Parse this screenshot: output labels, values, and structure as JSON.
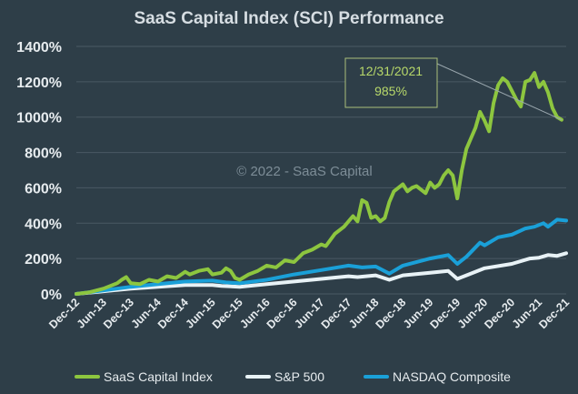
{
  "chart_data": {
    "type": "line",
    "title": "SaaS Capital Index (SCI) Performance",
    "xlabel": "",
    "ylabel": "",
    "ylim": [
      0,
      1400
    ],
    "y_unit": "%",
    "yticks": [
      "0%",
      "200%",
      "400%",
      "600%",
      "800%",
      "1000%",
      "1200%",
      "1400%"
    ],
    "x_tick_labels": [
      "Dec-12",
      "Jun-13",
      "Dec-13",
      "Jun-14",
      "Dec-14",
      "Jun-15",
      "Dec-15",
      "Jun-16",
      "Dec-16",
      "Jun-17",
      "Dec-17",
      "Jun-18",
      "Dec-18",
      "Jun-19",
      "Dec-19",
      "Jun-20",
      "Dec-20",
      "Jun-21",
      "Dec-21"
    ],
    "x_range_months": [
      0,
      108
    ],
    "grid": true,
    "legend_position": "bottom",
    "series": [
      {
        "name": "SaaS Capital Index",
        "color": "#8dc63f",
        "points": [
          [
            0,
            0
          ],
          [
            3,
            10
          ],
          [
            6,
            30
          ],
          [
            9,
            60
          ],
          [
            10,
            80
          ],
          [
            11,
            95
          ],
          [
            12,
            60
          ],
          [
            14,
            55
          ],
          [
            16,
            80
          ],
          [
            18,
            70
          ],
          [
            20,
            100
          ],
          [
            22,
            90
          ],
          [
            24,
            125
          ],
          [
            25,
            110
          ],
          [
            27,
            130
          ],
          [
            29,
            140
          ],
          [
            30,
            110
          ],
          [
            32,
            120
          ],
          [
            33,
            145
          ],
          [
            34,
            130
          ],
          [
            35,
            90
          ],
          [
            36,
            80
          ],
          [
            38,
            110
          ],
          [
            40,
            130
          ],
          [
            42,
            160
          ],
          [
            44,
            150
          ],
          [
            46,
            190
          ],
          [
            48,
            180
          ],
          [
            50,
            230
          ],
          [
            52,
            250
          ],
          [
            54,
            280
          ],
          [
            55,
            270
          ],
          [
            57,
            340
          ],
          [
            59,
            380
          ],
          [
            61,
            440
          ],
          [
            62,
            410
          ],
          [
            63,
            530
          ],
          [
            64,
            515
          ],
          [
            65,
            430
          ],
          [
            66,
            440
          ],
          [
            67,
            410
          ],
          [
            68,
            430
          ],
          [
            69,
            520
          ],
          [
            70,
            580
          ],
          [
            71,
            600
          ],
          [
            72,
            620
          ],
          [
            73,
            580
          ],
          [
            74,
            600
          ],
          [
            75,
            610
          ],
          [
            76,
            590
          ],
          [
            77,
            570
          ],
          [
            78,
            630
          ],
          [
            79,
            600
          ],
          [
            80,
            620
          ],
          [
            81,
            670
          ],
          [
            82,
            700
          ],
          [
            83,
            670
          ],
          [
            84,
            540
          ],
          [
            85,
            700
          ],
          [
            86,
            820
          ],
          [
            87,
            880
          ],
          [
            88,
            940
          ],
          [
            89,
            1030
          ],
          [
            90,
            980
          ],
          [
            91,
            920
          ],
          [
            92,
            1080
          ],
          [
            93,
            1180
          ],
          [
            94,
            1220
          ],
          [
            95,
            1200
          ],
          [
            96,
            1150
          ],
          [
            97,
            1100
          ],
          [
            98,
            1060
          ],
          [
            99,
            1200
          ],
          [
            100,
            1210
          ],
          [
            101,
            1250
          ],
          [
            102,
            1170
          ],
          [
            103,
            1200
          ],
          [
            104,
            1140
          ],
          [
            105,
            1050
          ],
          [
            106,
            1000
          ],
          [
            107,
            985
          ]
        ]
      },
      {
        "name": "S&P 500",
        "color": "#e8f2f6",
        "points": [
          [
            0,
            0
          ],
          [
            6,
            15
          ],
          [
            12,
            30
          ],
          [
            18,
            40
          ],
          [
            24,
            50
          ],
          [
            30,
            50
          ],
          [
            32,
            45
          ],
          [
            36,
            40
          ],
          [
            42,
            55
          ],
          [
            48,
            70
          ],
          [
            54,
            85
          ],
          [
            60,
            100
          ],
          [
            62,
            95
          ],
          [
            66,
            105
          ],
          [
            69,
            80
          ],
          [
            72,
            105
          ],
          [
            78,
            120
          ],
          [
            82,
            130
          ],
          [
            84,
            85
          ],
          [
            86,
            105
          ],
          [
            90,
            145
          ],
          [
            96,
            170
          ],
          [
            100,
            200
          ],
          [
            102,
            205
          ],
          [
            104,
            220
          ],
          [
            106,
            215
          ],
          [
            108,
            230
          ]
        ]
      },
      {
        "name": "NASDAQ Composite",
        "color": "#1aa0d8",
        "points": [
          [
            0,
            0
          ],
          [
            6,
            20
          ],
          [
            12,
            40
          ],
          [
            18,
            55
          ],
          [
            24,
            70
          ],
          [
            30,
            75
          ],
          [
            33,
            65
          ],
          [
            36,
            60
          ],
          [
            42,
            80
          ],
          [
            48,
            110
          ],
          [
            54,
            135
          ],
          [
            60,
            160
          ],
          [
            63,
            150
          ],
          [
            66,
            155
          ],
          [
            69,
            115
          ],
          [
            72,
            160
          ],
          [
            78,
            200
          ],
          [
            82,
            220
          ],
          [
            84,
            170
          ],
          [
            86,
            210
          ],
          [
            89,
            290
          ],
          [
            90,
            275
          ],
          [
            93,
            320
          ],
          [
            96,
            335
          ],
          [
            99,
            370
          ],
          [
            101,
            380
          ],
          [
            103,
            400
          ],
          [
            104,
            380
          ],
          [
            106,
            420
          ],
          [
            108,
            415
          ]
        ]
      }
    ],
    "annotation": {
      "date": "12/31/2021",
      "value": "985%",
      "points_to": [
        107,
        985
      ]
    },
    "watermark": "© 2022 - SaaS Capital"
  }
}
